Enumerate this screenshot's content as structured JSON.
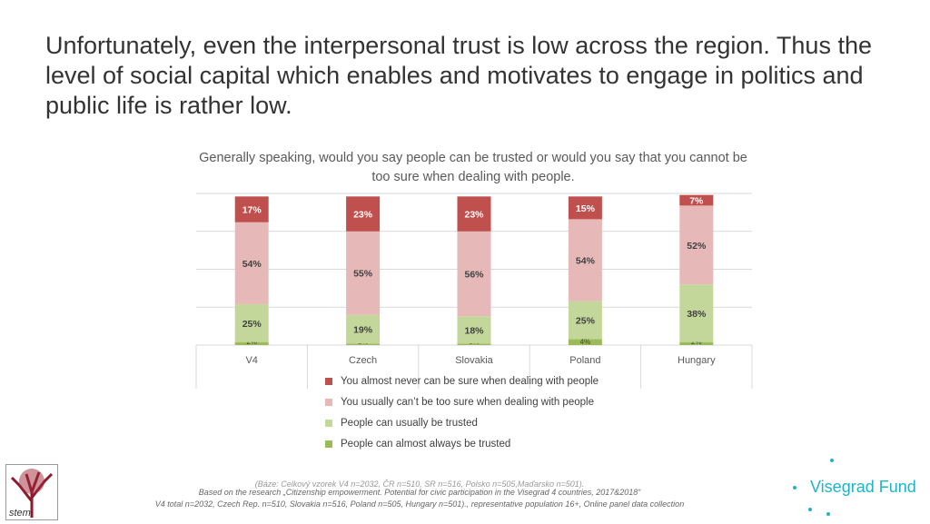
{
  "title": "Unfortunately, even the interpersonal trust is low across the region. Thus the level of social capital which enables and motivates to engage in politics and public life is rather low.",
  "chart_data": {
    "type": "bar",
    "stacked": true,
    "title": "Generally speaking, would you say people can be trusted or would you say that you cannot be too sure when dealing with people.",
    "categories": [
      "V4",
      "Czech",
      "Slovakia",
      "Poland",
      "Hungary"
    ],
    "ylim": [
      0,
      100
    ],
    "grid": true,
    "legend_position": "bottom",
    "series": [
      {
        "name": "People can almost always be trusted",
        "color": "#9bbb59",
        "values": [
          2,
          1,
          1,
          4,
          2
        ]
      },
      {
        "name": "People can usually be trusted",
        "color": "#c4d79b",
        "values": [
          25,
          19,
          18,
          25,
          38
        ]
      },
      {
        "name": "You usually can’t be too sure when dealing with people",
        "color": "#e6b9b8",
        "values": [
          54,
          55,
          56,
          54,
          52
        ]
      },
      {
        "name": "You almost never can be sure when dealing with people",
        "color": "#c0504d",
        "values": [
          17,
          23,
          23,
          15,
          7
        ]
      }
    ],
    "legend_order": [
      3,
      2,
      1,
      0
    ]
  },
  "footnote": {
    "line1": "(Báze: Celkový vzorek V4 n=2032, ČR n=510, SR n=516, Polsko n=505,Maďarsko n=501).",
    "line2": "Based on the research  „Citizenship empowerment. Potential for civic participation in the Visegrad 4 countries, 2017&2018“",
    "line3": "V4 total n=2032, Czech Rep. n=510, Slovakia n=516, Poland n=505, Hungary n=501)., representative population 16+, Online panel data collection"
  },
  "logos": {
    "left": "stem",
    "right": "Visegrad Fund"
  }
}
